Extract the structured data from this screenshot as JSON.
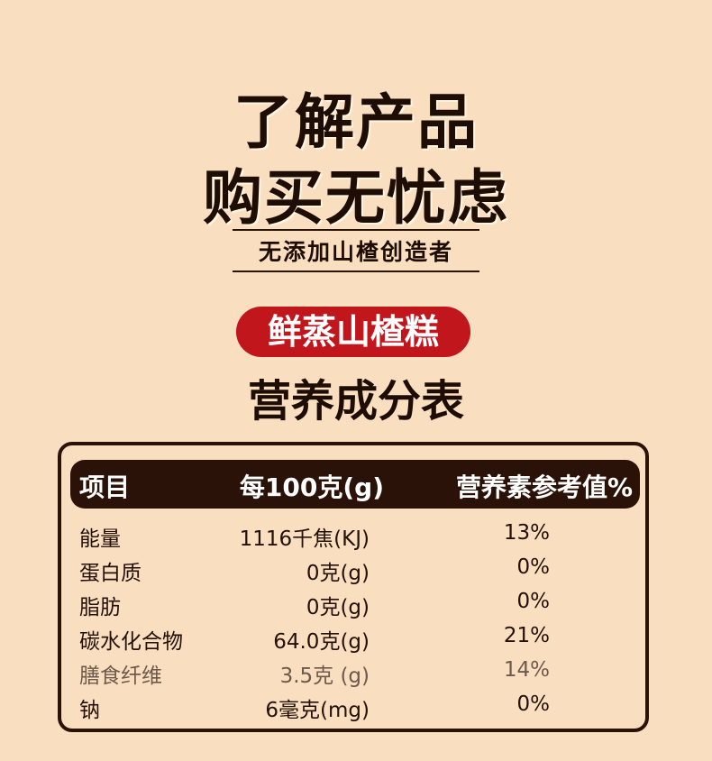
{
  "headline": {
    "line1": "了解产品",
    "line2": "购买无忧虑"
  },
  "tagline": "无添加山楂创造者",
  "product_name": "鲜蒸山楂糕",
  "section_title": "营养成分表",
  "colors": {
    "background": "#f9dfc0",
    "dark": "#2a1208",
    "accent_red": "#c2161d"
  },
  "nutrition_table": {
    "headers": [
      "项目",
      "每100克(g)",
      "营养素参考值%"
    ],
    "rows": [
      {
        "item": "能量",
        "per100g": "1116千焦(KJ)",
        "nrv": "13%"
      },
      {
        "item": "蛋白质",
        "per100g": "0克(g)",
        "nrv": "0%"
      },
      {
        "item": "脂肪",
        "per100g": "0克(g)",
        "nrv": "0%"
      },
      {
        "item": "碳水化合物",
        "per100g": "64.0克(g)",
        "nrv": "21%"
      },
      {
        "item": "膳食纤维",
        "per100g": "3.5克 (g)",
        "nrv": "14%"
      },
      {
        "item": "钠",
        "per100g": "6毫克(mg)",
        "nrv": "0%"
      }
    ]
  }
}
